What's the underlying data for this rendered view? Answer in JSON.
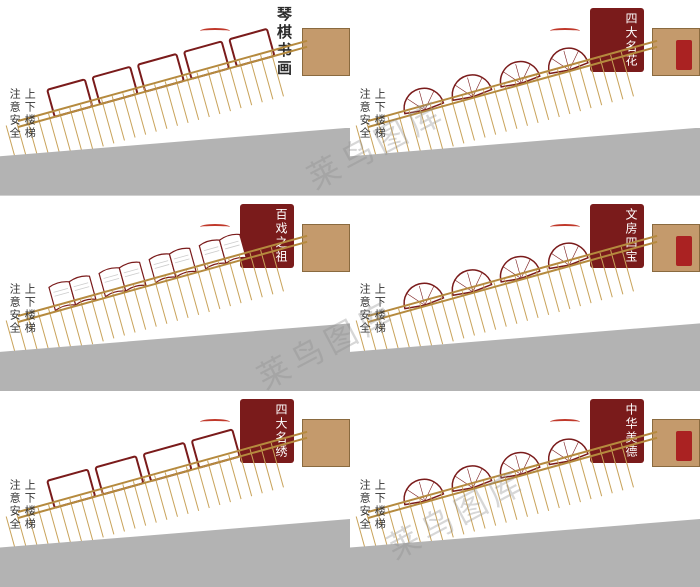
{
  "watermark_text": "莱鸟图库",
  "side_text": {
    "col1": "上下楼梯",
    "col2": "注意安全"
  },
  "colors": {
    "wall": "#c49a6c",
    "floor": "#b3b3b3",
    "rail": "#b58a3e",
    "title_bg": "#7a1b1b",
    "title_fg": "#ffffff",
    "text": "#333333",
    "panel_border": "#7a1b1b"
  },
  "cells": [
    {
      "title": "琴棋书画",
      "title_style": "plain",
      "panel_type": "rect",
      "panel_count": 5
    },
    {
      "title": "四大名花",
      "title_style": "badge",
      "panel_type": "fan",
      "panel_count": 4
    },
    {
      "title": "百戏之祖",
      "title_style": "badge",
      "panel_type": "book",
      "panel_count": 4
    },
    {
      "title": "文房四宝",
      "title_style": "badge",
      "panel_type": "fan",
      "panel_count": 4
    },
    {
      "title": "四大名绣",
      "title_style": "badge",
      "panel_type": "rect",
      "panel_count": 4
    },
    {
      "title": "中华美德",
      "title_style": "badge",
      "panel_type": "fan",
      "panel_count": 4
    }
  ]
}
